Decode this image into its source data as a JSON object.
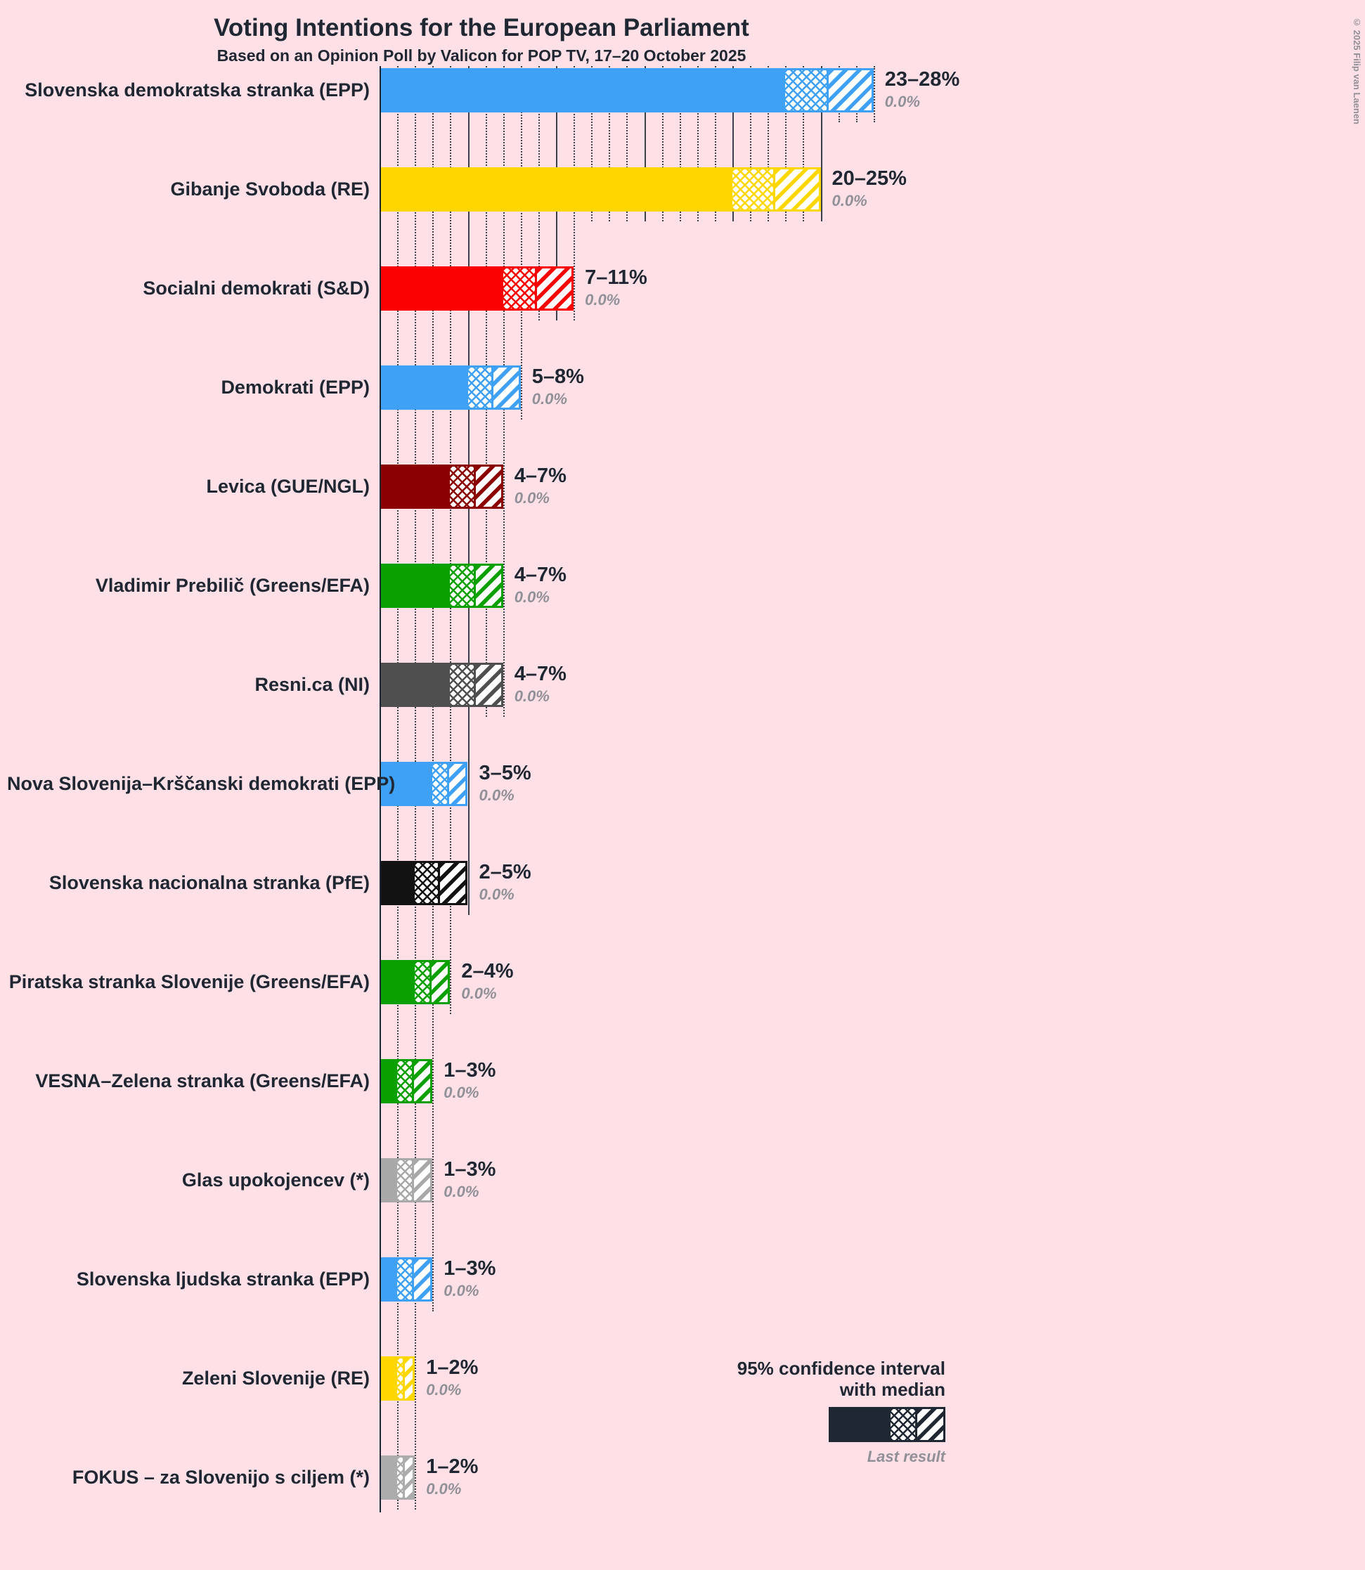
{
  "title": "Voting Intentions for the European Parliament",
  "subtitle": "Based on an Opinion Poll by Valicon for POP TV, 17–20 October 2025",
  "copyright": "© 2025 Filip van Laenen",
  "legend": {
    "line1": "95% confidence interval",
    "line2": "with median",
    "last_result": "Last result"
  },
  "colors": {
    "background": "#FFE0E6",
    "text": "#1F2733",
    "muted": "#909098",
    "grid": "#3A4048",
    "legend_bar": "#1F2733"
  },
  "chart_data": {
    "type": "bar",
    "orientation": "horizontal",
    "unit": "%",
    "title": "Voting Intentions for the European Parliament",
    "subtitle": "Based on an Opinion Poll by Valicon for POP TV, 17–20 October 2025",
    "x_axis": {
      "min": 0,
      "max": 28,
      "minor_tick": 1,
      "major_tick": 5,
      "grid": "dotted"
    },
    "rows": [
      {
        "party": "Slovenska demokratska stranka (EPP)",
        "ci_low": 23,
        "median": 25.5,
        "ci_high": 28,
        "range_label": "23–28%",
        "last_result": "0.0%",
        "color": "#3FA1F5"
      },
      {
        "party": "Gibanje Svoboda (RE)",
        "ci_low": 20,
        "median": 22.5,
        "ci_high": 25,
        "range_label": "20–25%",
        "last_result": "0.0%",
        "color": "#FFD700"
      },
      {
        "party": "Socialni demokrati (S&D)",
        "ci_low": 7,
        "median": 9,
        "ci_high": 11,
        "range_label": "7–11%",
        "last_result": "0.0%",
        "color": "#FB0000"
      },
      {
        "party": "Demokrati (EPP)",
        "ci_low": 5,
        "median": 6.5,
        "ci_high": 8,
        "range_label": "5–8%",
        "last_result": "0.0%",
        "color": "#3FA1F5"
      },
      {
        "party": "Levica (GUE/NGL)",
        "ci_low": 4,
        "median": 5.5,
        "ci_high": 7,
        "range_label": "4–7%",
        "last_result": "0.0%",
        "color": "#8B0000"
      },
      {
        "party": "Vladimir Prebilič (Greens/EFA)",
        "ci_low": 4,
        "median": 5.5,
        "ci_high": 7,
        "range_label": "4–7%",
        "last_result": "0.0%",
        "color": "#0AA000"
      },
      {
        "party": "Resni.ca (NI)",
        "ci_low": 4,
        "median": 5.5,
        "ci_high": 7,
        "range_label": "4–7%",
        "last_result": "0.0%",
        "color": "#4F4F4F"
      },
      {
        "party": "Nova Slovenija–Krščanski demokrati (EPP)",
        "ci_low": 3,
        "median": 4,
        "ci_high": 5,
        "range_label": "3–5%",
        "last_result": "0.0%",
        "color": "#3FA1F5"
      },
      {
        "party": "Slovenska nacionalna stranka (PfE)",
        "ci_low": 2,
        "median": 3.5,
        "ci_high": 5,
        "range_label": "2–5%",
        "last_result": "0.0%",
        "color": "#121212"
      },
      {
        "party": "Piratska stranka Slovenije (Greens/EFA)",
        "ci_low": 2,
        "median": 3,
        "ci_high": 4,
        "range_label": "2–4%",
        "last_result": "0.0%",
        "color": "#0AA000"
      },
      {
        "party": "VESNA–Zelena stranka (Greens/EFA)",
        "ci_low": 1,
        "median": 2,
        "ci_high": 3,
        "range_label": "1–3%",
        "last_result": "0.0%",
        "color": "#0AA000"
      },
      {
        "party": "Glas upokojencev (*)",
        "ci_low": 1,
        "median": 2,
        "ci_high": 3,
        "range_label": "1–3%",
        "last_result": "0.0%",
        "color": "#A8A8A8"
      },
      {
        "party": "Slovenska ljudska stranka (EPP)",
        "ci_low": 1,
        "median": 2,
        "ci_high": 3,
        "range_label": "1–3%",
        "last_result": "0.0%",
        "color": "#3FA1F5"
      },
      {
        "party": "Zeleni Slovenije (RE)",
        "ci_low": 1,
        "median": 1.5,
        "ci_high": 2,
        "range_label": "1–2%",
        "last_result": "0.0%",
        "color": "#FFD700"
      },
      {
        "party": "FOKUS – za Slovenijo s ciljem (*)",
        "ci_low": 1,
        "median": 1.5,
        "ci_high": 2,
        "range_label": "1–2%",
        "last_result": "0.0%",
        "color": "#ACACAC"
      }
    ]
  }
}
